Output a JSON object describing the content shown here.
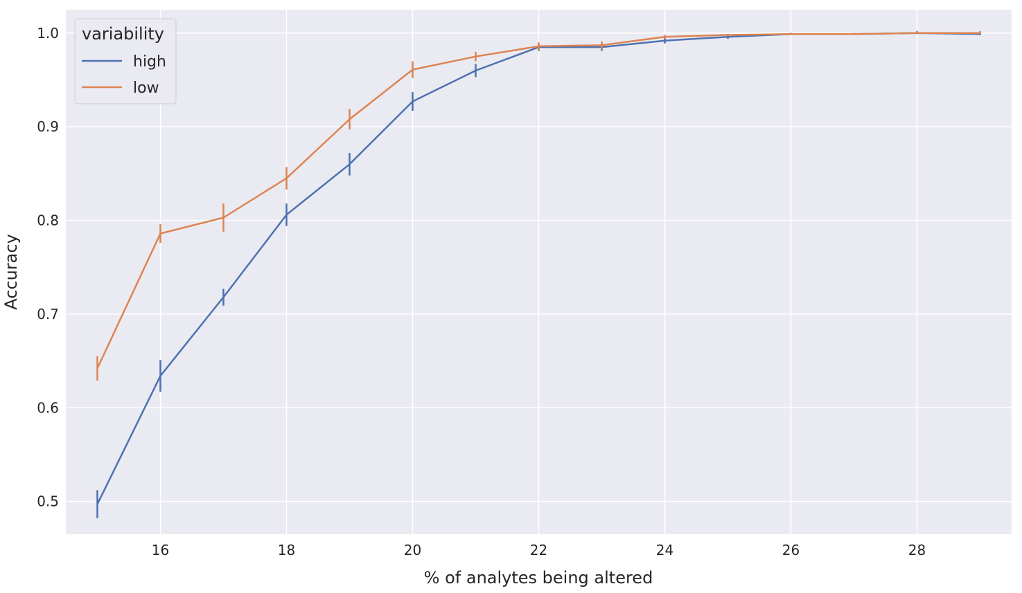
{
  "chart_data": {
    "type": "line",
    "title": "",
    "xlabel": "% of analytes being altered",
    "ylabel": "Accuracy",
    "xlim": [
      14.5,
      29.5
    ],
    "ylim": [
      0.465,
      1.025
    ],
    "x_ticks": [
      16,
      18,
      20,
      22,
      24,
      26,
      28
    ],
    "x_tick_labels": [
      "16",
      "18",
      "20",
      "22",
      "24",
      "26",
      "28"
    ],
    "y_ticks": [
      0.5,
      0.6,
      0.7,
      0.8,
      0.9,
      1.0
    ],
    "y_tick_labels": [
      "0.5",
      "0.6",
      "0.7",
      "0.8",
      "0.9",
      "1.0"
    ],
    "grid": true,
    "background": "#eaeaf2",
    "legend": {
      "title": "variability",
      "placement": "top-left"
    },
    "series": [
      {
        "name": "high",
        "color": "#4c72b0",
        "x": [
          15,
          16,
          17,
          18,
          19,
          20,
          21,
          22,
          23,
          24,
          25,
          26,
          27,
          28,
          29
        ],
        "y": [
          0.497,
          0.634,
          0.718,
          0.806,
          0.86,
          0.927,
          0.96,
          0.985,
          0.985,
          0.992,
          0.996,
          0.999,
          0.999,
          1.0,
          0.999
        ],
        "err": [
          0.015,
          0.017,
          0.009,
          0.012,
          0.012,
          0.01,
          0.007,
          0.004,
          0.004,
          0.003,
          0.002,
          0.001,
          0.001,
          0.0,
          0.001
        ]
      },
      {
        "name": "low",
        "color": "#dd8452",
        "x": [
          15,
          16,
          17,
          18,
          19,
          20,
          21,
          22,
          23,
          24,
          25,
          26,
          27,
          28,
          29
        ],
        "y": [
          0.642,
          0.786,
          0.803,
          0.845,
          0.908,
          0.961,
          0.975,
          0.986,
          0.987,
          0.996,
          0.998,
          0.999,
          0.999,
          1.0,
          1.0
        ],
        "err": [
          0.013,
          0.01,
          0.015,
          0.012,
          0.011,
          0.009,
          0.005,
          0.004,
          0.004,
          0.002,
          0.001,
          0.001,
          0.001,
          0.0,
          0.0
        ]
      }
    ]
  }
}
